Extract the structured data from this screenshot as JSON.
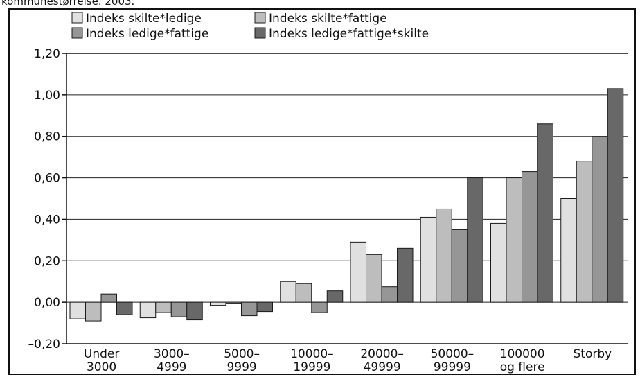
{
  "caption": "kommunestørrelse. 2003.",
  "chart_data": {
    "type": "bar",
    "title": "",
    "xlabel": "",
    "ylabel": "",
    "ylim": [
      -0.2,
      1.2
    ],
    "yticks": [
      "1,20",
      "1,00",
      "0,80",
      "0,60",
      "0,40",
      "0,20",
      "0,00",
      "–0,20"
    ],
    "grid": true,
    "legend_position": "top-left",
    "categories": [
      [
        "Under",
        "3000"
      ],
      [
        "3000–",
        "4999"
      ],
      [
        "5000–",
        "9999"
      ],
      [
        "10000–",
        "19999"
      ],
      [
        "20000–",
        "49999"
      ],
      [
        "50000–",
        "99999"
      ],
      [
        "100000",
        "og flere"
      ],
      [
        "Storby"
      ]
    ],
    "series": [
      {
        "name": "Indeks skilte*ledige",
        "color": "#e0e0e0",
        "values": [
          -0.08,
          -0.075,
          -0.015,
          0.1,
          0.29,
          0.41,
          0.38,
          0.5
        ]
      },
      {
        "name": "Indeks skilte*fattige",
        "color": "#bdbdbd",
        "values": [
          -0.09,
          -0.05,
          -0.005,
          0.09,
          0.23,
          0.45,
          0.6,
          0.68
        ]
      },
      {
        "name": "Indeks ledige*fattige",
        "color": "#969696",
        "values": [
          0.04,
          -0.07,
          -0.065,
          -0.05,
          0.075,
          0.35,
          0.63,
          0.8
        ]
      },
      {
        "name": "Indeks ledige*fattige*skilte",
        "color": "#686868",
        "values": [
          -0.06,
          -0.085,
          -0.045,
          0.055,
          0.26,
          0.6,
          0.86,
          1.03
        ]
      }
    ]
  }
}
